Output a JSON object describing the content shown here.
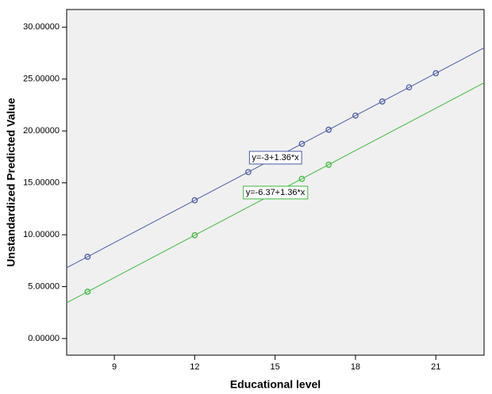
{
  "chart_data": {
    "type": "scatter",
    "x_label": "Educational level",
    "y_label": "Unstandardized Predicted Value",
    "xlim": [
      7.22,
      22.8
    ],
    "ylim": [
      -1.6,
      31.7
    ],
    "xticks": [
      9,
      12,
      15,
      18,
      21
    ],
    "yticks": [
      {
        "value": 0,
        "label": "0.00000"
      },
      {
        "value": 5,
        "label": "5.00000"
      },
      {
        "value": 10,
        "label": "10.00000"
      },
      {
        "value": 15,
        "label": "15.00000"
      },
      {
        "value": 20,
        "label": "20.00000"
      },
      {
        "value": 25,
        "label": "25.00000"
      },
      {
        "value": 30,
        "label": "30.00000"
      }
    ],
    "grid": false,
    "series": [
      {
        "color": "#4b5ca6",
        "x": [
          8,
          12,
          14,
          16,
          17,
          18,
          19,
          20,
          21
        ],
        "values": [
          7.88,
          13.32,
          16.04,
          18.76,
          20.12,
          21.48,
          22.84,
          24.2,
          25.56
        ],
        "fit": {
          "label": "y=-3+1.36*x",
          "intercept": -3,
          "slope": 1.36
        }
      },
      {
        "color": "#3cbc3c",
        "x": [
          8,
          12,
          16,
          17
        ],
        "values": [
          4.51,
          9.95,
          15.39,
          16.75
        ],
        "fit": {
          "label": "y=-6.37+1.36*x",
          "intercept": -6.37,
          "slope": 1.36
        }
      }
    ]
  }
}
